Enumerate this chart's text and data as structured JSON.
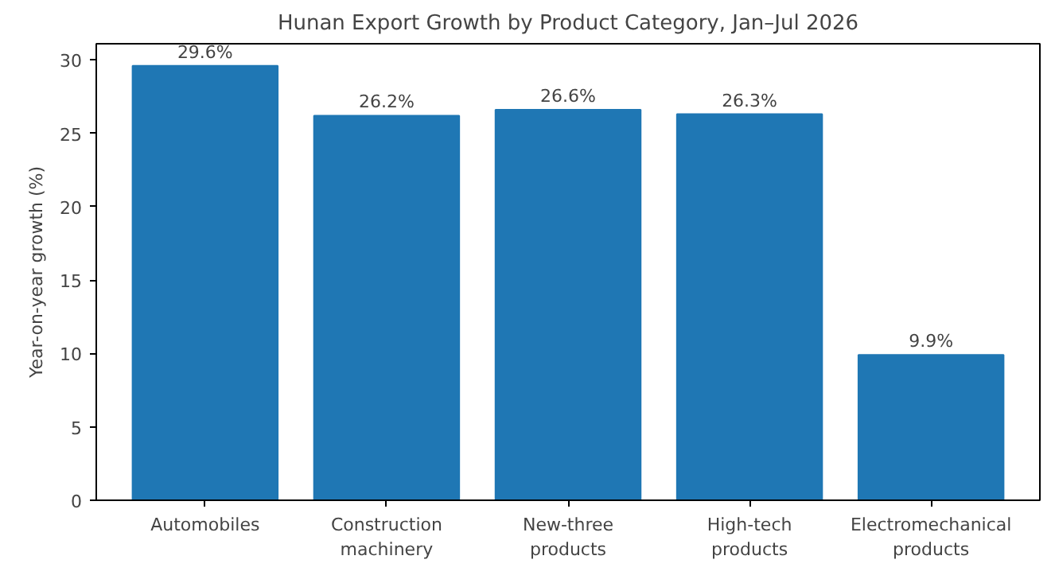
{
  "chart_data": {
    "type": "bar",
    "title": "Hunan Export Growth by Product Category, Jan–Jul 2026",
    "ylabel": "Year-on-year growth (%)",
    "categories": [
      "Automobiles",
      "Construction\nmachinery",
      "New-three\nproducts",
      "High-tech\nproducts",
      "Electromechanical\nproducts"
    ],
    "values": [
      29.6,
      26.2,
      26.6,
      26.3,
      9.9
    ],
    "value_labels": [
      "29.6%",
      "26.2%",
      "26.6%",
      "26.3%",
      "9.9%"
    ],
    "color": "#1f77b4",
    "ylim": [
      0,
      31.1
    ],
    "yticks": [
      0,
      5,
      10,
      15,
      20,
      25,
      30
    ],
    "grid": false
  }
}
